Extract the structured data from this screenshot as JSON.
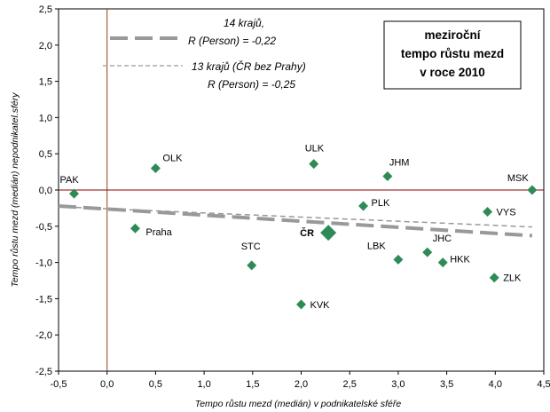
{
  "chart_data": {
    "type": "scatter",
    "title_lines": [
      "meziroční",
      "tempo růstu mezd",
      "v roce 2010"
    ],
    "xlabel": "Tempo růstu mezd (medián) v podnikatelské sféře",
    "ylabel": "Tempo růstu mezd (medián) nepodnikatel.sféry",
    "xlim": [
      -0.5,
      4.5
    ],
    "ylim": [
      -2.5,
      2.5
    ],
    "x_ticks": [
      "-0,5",
      "0,0",
      "0,5",
      "1,0",
      "1,5",
      "2,0",
      "2,5",
      "3,0",
      "3,5",
      "4,0",
      "4,5"
    ],
    "y_ticks": [
      "2,5",
      "2,0",
      "1,5",
      "1,0",
      "0,5",
      "0,0",
      "-0,5",
      "-1,0",
      "-1,5",
      "-2,0",
      "-2,5"
    ],
    "grid": false,
    "points": [
      {
        "label": "PAK",
        "x": -0.34,
        "y": -0.05
      },
      {
        "label": "OLK",
        "x": 0.5,
        "y": 0.3
      },
      {
        "label": "Praha",
        "x": 0.29,
        "y": -0.53
      },
      {
        "label": "ULK",
        "x": 2.13,
        "y": 0.36
      },
      {
        "label": "JHM",
        "x": 2.89,
        "y": 0.19
      },
      {
        "label": "MSK",
        "x": 4.38,
        "y": 0.0
      },
      {
        "label": "PLK",
        "x": 2.64,
        "y": -0.22
      },
      {
        "label": "VYS",
        "x": 3.92,
        "y": -0.3
      },
      {
        "label": "STC",
        "x": 1.49,
        "y": -1.04
      },
      {
        "label": "LBK",
        "x": 3.0,
        "y": -0.96
      },
      {
        "label": "JHC",
        "x": 3.3,
        "y": -0.86
      },
      {
        "label": "HKK",
        "x": 3.46,
        "y": -1.0
      },
      {
        "label": "ZLK",
        "x": 3.99,
        "y": -1.21
      },
      {
        "label": "KVK",
        "x": 2.0,
        "y": -1.58
      },
      {
        "label": "ČR",
        "x": 2.28,
        "y": -0.59,
        "highlight": true
      }
    ],
    "trendlines": [
      {
        "name": "14 krajů,",
        "stat": "R (Person)  =  -0,22",
        "from": [
          -0.5,
          -0.22
        ],
        "to": [
          4.38,
          -0.63
        ],
        "style": "dashed-thick"
      },
      {
        "name": "13 krajů (ČR bez Prahy)",
        "stat": "R (Person)  =  -0,25",
        "from": [
          -0.5,
          -0.23
        ],
        "to": [
          4.38,
          -0.51
        ],
        "style": "dashed-thin"
      }
    ],
    "point_color": "#2e8b57",
    "trend_color": "#999999",
    "axis_color": "#8b0000"
  }
}
